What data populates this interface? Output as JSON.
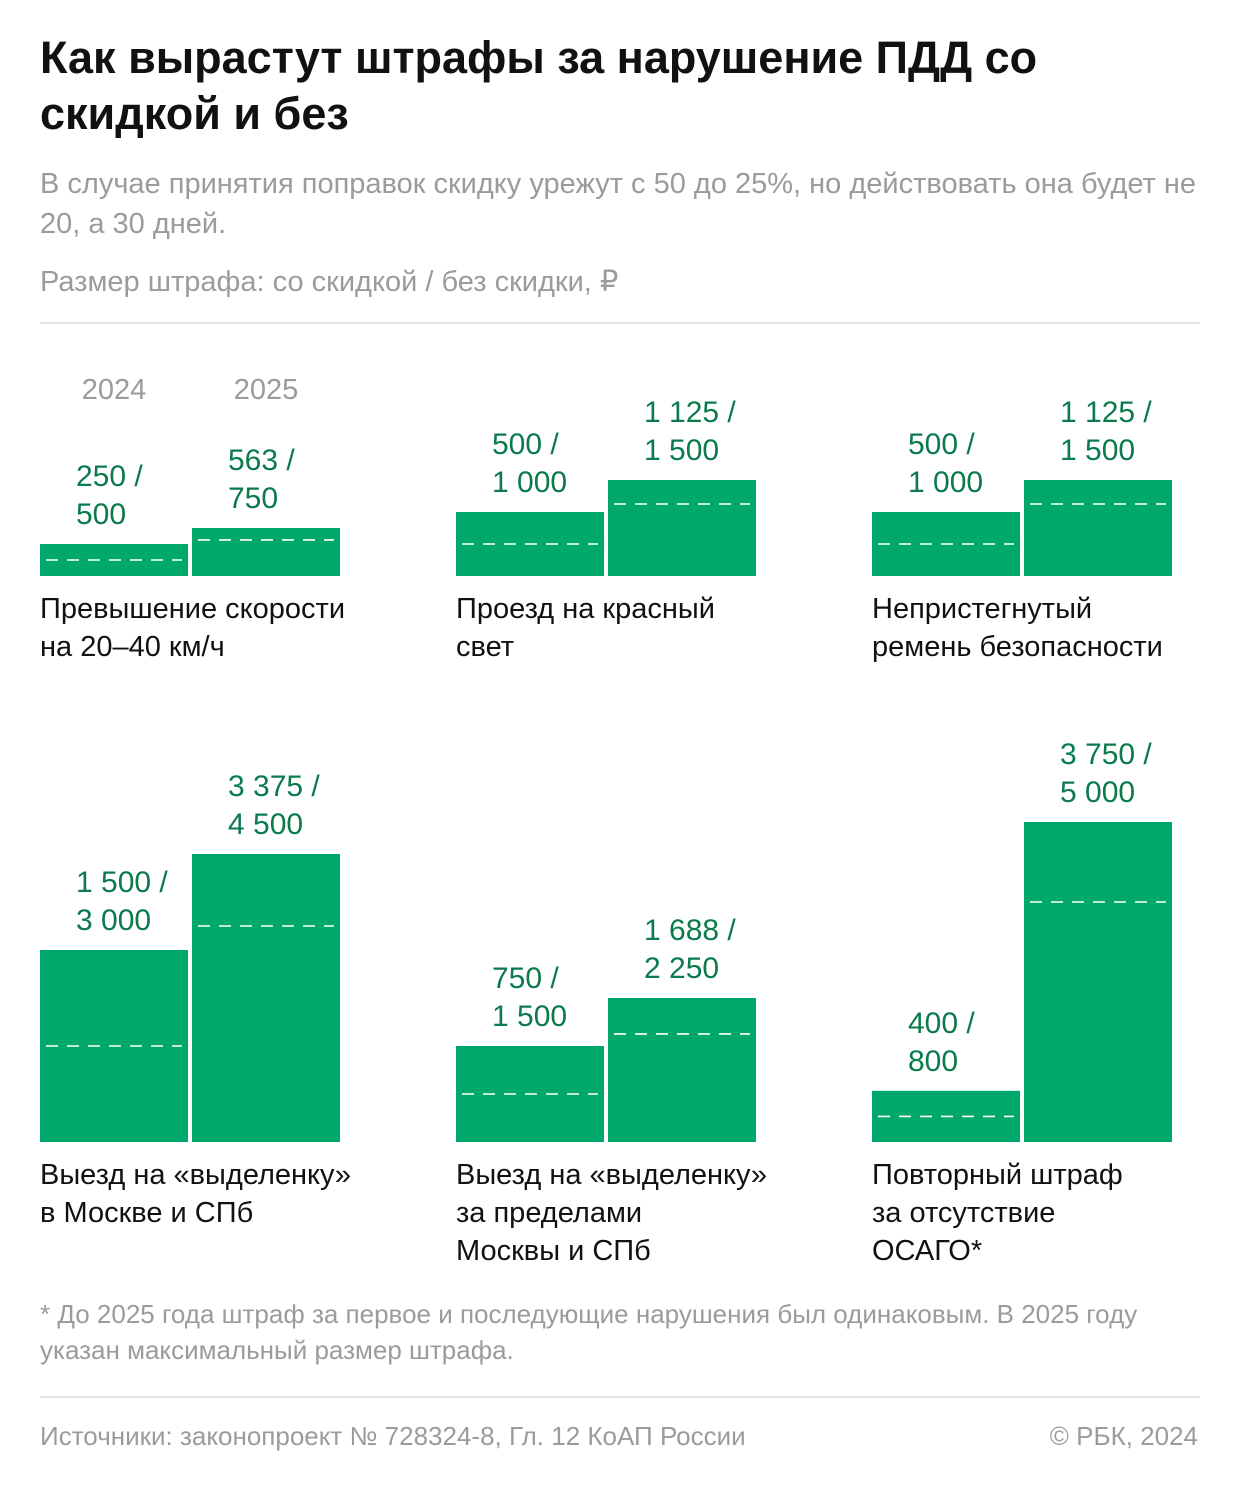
{
  "title": "Как вырастут штрафы за нарушение ПДД со скидкой и без",
  "subtitle": "В случае принятия поправок скидку урежут с 50 до 25%, но действовать она будет не 20, а 30 дней.",
  "units_note": "Размер штрафа: со скидкой / без скидки, ₽",
  "colors": {
    "bar": "#00a86b",
    "value_label": "#0b7a4c",
    "muted": "#9b9b9b"
  },
  "chart_data": {
    "type": "bar",
    "title": "Как вырастут штрафы за нарушение ПДД со скидкой и без",
    "ylabel": "Размер штрафа: со скидкой / без скидки, ₽",
    "ylim": [
      0,
      5000
    ],
    "categories": [
      "2024",
      "2025"
    ],
    "series_note": "bar height = fine without discount; dashed line = fine with discount",
    "panels": [
      {
        "name": "Превышение скорости на 20–40 км/ч",
        "label_lines": [
          "Превышение скорости",
          "на 20–40 км/ч"
        ],
        "bars": [
          {
            "year": "2024",
            "discount": 250,
            "full": 500,
            "label_lines": [
              "250 /",
              "500"
            ]
          },
          {
            "year": "2025",
            "discount": 563,
            "full": 750,
            "label_lines": [
              "563 /",
              "750"
            ]
          }
        ]
      },
      {
        "name": "Проезд на красный свет",
        "label_lines": [
          "Проезд на красный",
          "свет"
        ],
        "bars": [
          {
            "year": "2024",
            "discount": 500,
            "full": 1000,
            "label_lines": [
              "500 /",
              "1 000"
            ]
          },
          {
            "year": "2025",
            "discount": 1125,
            "full": 1500,
            "label_lines": [
              "1 125 /",
              "1 500"
            ]
          }
        ]
      },
      {
        "name": "Непристегнутый ремень безопасности",
        "label_lines": [
          "Непристегнутый",
          "ремень безопасности"
        ],
        "bars": [
          {
            "year": "2024",
            "discount": 500,
            "full": 1000,
            "label_lines": [
              "500 /",
              "1 000"
            ]
          },
          {
            "year": "2025",
            "discount": 1125,
            "full": 1500,
            "label_lines": [
              "1 125 /",
              "1 500"
            ]
          }
        ]
      },
      {
        "name": "Выезд на «выделенку» в Москве и СПб",
        "label_lines": [
          "Выезд на «выделенку»",
          "в Москве и СПб"
        ],
        "bars": [
          {
            "year": "2024",
            "discount": 1500,
            "full": 3000,
            "label_lines": [
              "1 500 /",
              "3 000"
            ]
          },
          {
            "year": "2025",
            "discount": 3375,
            "full": 4500,
            "label_lines": [
              "3 375 /",
              "4 500"
            ]
          }
        ]
      },
      {
        "name": "Выезд на «выделенку» за пределами Москвы и СПб",
        "label_lines": [
          "Выезд на «выделенку»",
          "за пределами",
          "Москвы и СПб"
        ],
        "bars": [
          {
            "year": "2024",
            "discount": 750,
            "full": 1500,
            "label_lines": [
              "750 /",
              "1 500"
            ]
          },
          {
            "year": "2025",
            "discount": 1688,
            "full": 2250,
            "label_lines": [
              "1 688 /",
              "2 250"
            ]
          }
        ]
      },
      {
        "name": "Повторный штраф за отсутствие ОСАГО*",
        "label_lines": [
          "Повторный штраф",
          "за отсутствие",
          "ОСАГО*"
        ],
        "bars": [
          {
            "year": "2024",
            "discount": 400,
            "full": 800,
            "label_lines": [
              "400 /",
              "800"
            ]
          },
          {
            "year": "2025",
            "discount": 3750,
            "full": 5000,
            "label_lines": [
              "3 750 /",
              "5 000"
            ]
          }
        ]
      }
    ]
  },
  "footnote": "* До 2025 года штраф за первое и последующие нарушения был одинаковым. В 2025 году указан максимальный размер штрафа.",
  "source": "Источники: законопроект № 728324-8, Гл. 12 КоАП России",
  "copyright": "© РБК, 2024"
}
